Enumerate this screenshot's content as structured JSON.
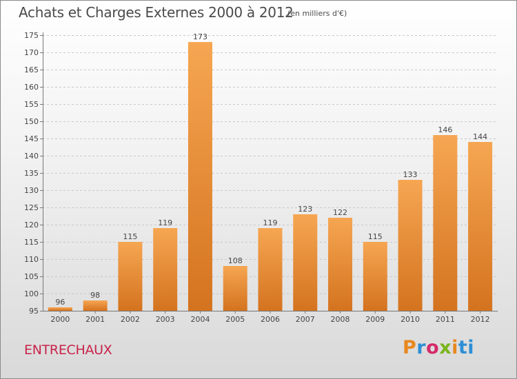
{
  "header": {
    "title": "Achats et Charges Externes 2000 à 2012",
    "subtitle": "(en milliers d'€)"
  },
  "footer": {
    "commune": "ENTRECHAUX",
    "logo_parts": [
      "P",
      "r",
      "o",
      "x",
      "i",
      "ti"
    ]
  },
  "colors": {
    "bar_top": "#f6a652",
    "bar_bottom": "#d4731f",
    "title_text": "#4a4a4a",
    "commune_text": "#c8234a"
  },
  "chart_data": {
    "type": "bar",
    "title": "Achats et Charges Externes 2000 à 2012",
    "subtitle": "(en milliers d'€)",
    "categories": [
      "2000",
      "2001",
      "2002",
      "2003",
      "2004",
      "2005",
      "2006",
      "2007",
      "2008",
      "2009",
      "2010",
      "2011",
      "2012"
    ],
    "values": [
      96,
      98,
      115,
      119,
      173,
      108,
      119,
      123,
      122,
      115,
      133,
      146,
      144
    ],
    "ylim": [
      95,
      175
    ],
    "yticks": [
      95,
      100,
      105,
      110,
      115,
      120,
      125,
      130,
      135,
      140,
      145,
      150,
      155,
      160,
      165,
      170,
      175
    ],
    "xlabel": "",
    "ylabel": "",
    "grid": true,
    "data_labels": true
  }
}
